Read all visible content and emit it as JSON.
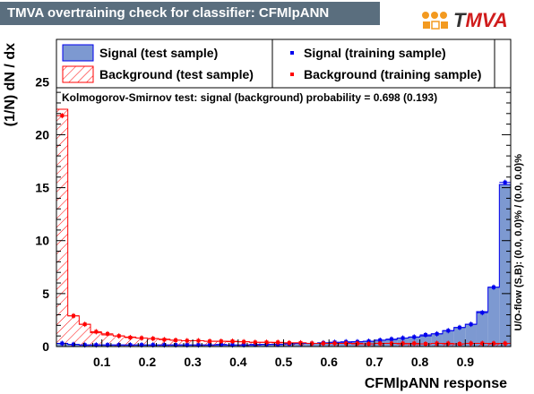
{
  "header": {
    "title": "TMVA overtraining check for classifier: CFMlpANN",
    "logo_text_t": "T",
    "logo_text_rest": "MVA"
  },
  "colors": {
    "title_bg": "#5a6e7e",
    "signal_fill": "#7d99d1",
    "signal_line": "#0000ee",
    "background_line": "#ff0000",
    "logo_red": "#d01c1c",
    "logo_orange": "#f39a20"
  },
  "chart_data": {
    "type": "histogram",
    "xlabel": "CFMlpANN response",
    "ylabel": "(1/N) dN / dx",
    "right_label": "U/O-flow (S,B): (0.0, 0.0)% / (0.0, 0.0)%",
    "ks_text": "Kolmogorov-Smirnov test: signal (background) probability = 0.698 (0.193)",
    "xlim": [
      0.0,
      1.0
    ],
    "ylim": [
      0,
      29
    ],
    "x_ticks": [
      "0.1",
      "0.2",
      "0.3",
      "0.4",
      "0.5",
      "0.6",
      "0.7",
      "0.8",
      "0.9"
    ],
    "y_ticks": [
      "0",
      "5",
      "10",
      "15",
      "20",
      "25"
    ],
    "bins": 40,
    "legend": [
      {
        "label": "Signal (test sample)",
        "style": "filled-box"
      },
      {
        "label": "Signal (training sample)",
        "style": "blue-marker"
      },
      {
        "label": "Background (test sample)",
        "style": "hatched-box"
      },
      {
        "label": "Background (training sample)",
        "style": "red-marker"
      }
    ],
    "series": [
      {
        "name": "Signal (test sample)",
        "values": [
          0.3,
          0.2,
          0.15,
          0.15,
          0.15,
          0.15,
          0.15,
          0.15,
          0.15,
          0.15,
          0.15,
          0.15,
          0.15,
          0.15,
          0.15,
          0.15,
          0.15,
          0.15,
          0.2,
          0.2,
          0.25,
          0.3,
          0.3,
          0.35,
          0.4,
          0.4,
          0.45,
          0.5,
          0.6,
          0.65,
          0.8,
          0.9,
          1.0,
          1.2,
          1.5,
          1.8,
          2.1,
          3.3,
          5.6,
          15.3
        ]
      },
      {
        "name": "Signal (training sample)",
        "values": [
          0.3,
          0.2,
          0.15,
          0.15,
          0.15,
          0.15,
          0.15,
          0.15,
          0.15,
          0.15,
          0.15,
          0.15,
          0.15,
          0.15,
          0.2,
          0.15,
          0.15,
          0.2,
          0.2,
          0.2,
          0.25,
          0.3,
          0.3,
          0.35,
          0.4,
          0.45,
          0.45,
          0.5,
          0.6,
          0.7,
          0.8,
          0.9,
          1.1,
          1.2,
          1.5,
          1.8,
          2.1,
          3.2,
          5.6,
          15.5
        ]
      },
      {
        "name": "Background (test sample)",
        "values": [
          22.4,
          2.9,
          2.1,
          1.3,
          1.1,
          1.0,
          0.9,
          0.8,
          0.75,
          0.7,
          0.6,
          0.55,
          0.55,
          0.5,
          0.5,
          0.45,
          0.45,
          0.4,
          0.4,
          0.35,
          0.35,
          0.35,
          0.3,
          0.3,
          0.3,
          0.3,
          0.25,
          0.25,
          0.3,
          0.3,
          0.25,
          0.25,
          0.25,
          0.3,
          0.25,
          0.25,
          0.3,
          0.3,
          0.25,
          0.3
        ]
      },
      {
        "name": "Background (training sample)",
        "values": [
          21.8,
          2.9,
          2.1,
          1.4,
          1.2,
          1.0,
          0.85,
          0.8,
          0.75,
          0.65,
          0.6,
          0.55,
          0.55,
          0.5,
          0.5,
          0.5,
          0.45,
          0.4,
          0.4,
          0.4,
          0.35,
          0.35,
          0.3,
          0.3,
          0.3,
          0.3,
          0.3,
          0.25,
          0.3,
          0.3,
          0.3,
          0.3,
          0.25,
          0.3,
          0.3,
          0.25,
          0.3,
          0.3,
          0.3,
          0.3
        ]
      }
    ]
  }
}
